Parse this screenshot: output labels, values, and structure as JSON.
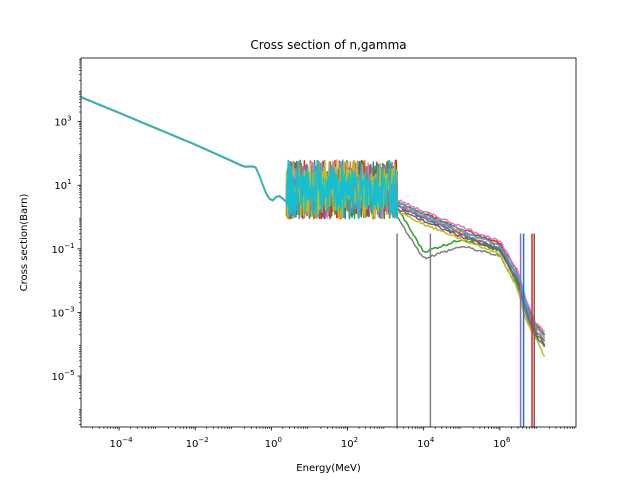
{
  "chart_data": {
    "type": "line",
    "title": "Cross section of n,gamma",
    "xlabel": "Energy(MeV)",
    "ylabel": "Cross section(Barn)",
    "xscale": "log",
    "yscale": "log",
    "xlim": [
      1e-05,
      100000000.0
    ],
    "ylim": [
      2.5e-07,
      100000.0
    ],
    "grid": false,
    "legend": "none",
    "x_ticks": [
      {
        "base": "10",
        "exp": "−4",
        "value": 0.0001
      },
      {
        "base": "10",
        "exp": "−2",
        "value": 0.01
      },
      {
        "base": "10",
        "exp": "0",
        "value": 1
      },
      {
        "base": "10",
        "exp": "2",
        "value": 100
      },
      {
        "base": "10",
        "exp": "4",
        "value": 10000.0
      },
      {
        "base": "10",
        "exp": "6",
        "value": 1000000.0
      }
    ],
    "y_ticks": [
      {
        "base": "10",
        "exp": "−5",
        "value": 1e-05
      },
      {
        "base": "10",
        "exp": "−3",
        "value": 0.001
      },
      {
        "base": "10",
        "exp": "−1",
        "value": 0.1
      },
      {
        "base": "10",
        "exp": "1",
        "value": 10
      },
      {
        "base": "10",
        "exp": "3",
        "value": 1000
      }
    ],
    "thermal_region": {
      "x": [
        1e-05,
        0.0001,
        0.001,
        0.01,
        0.1,
        0.2,
        0.3,
        0.4,
        0.5,
        0.7,
        1.0,
        1.5,
        2.5
      ],
      "y": [
        5900,
        1900,
        600,
        190,
        55,
        38,
        40,
        36,
        18,
        6,
        3,
        5,
        3
      ]
    },
    "resonance_region": {
      "x_range": [
        2.5,
        2000
      ],
      "y_range": [
        0.7,
        50
      ]
    },
    "fast_region_x": [
      2000,
      10000.0,
      100000.0,
      1000000.0,
      3000000.0,
      5000000.0,
      8000000.0,
      15000000.0
    ],
    "series_colors": [
      "#1f77b4",
      "#ff7f0e",
      "#2ca02c",
      "#d62728",
      "#9467bd",
      "#8c564b",
      "#e377c2",
      "#7f7f7f",
      "#bcbd22",
      "#17becf"
    ],
    "series": [
      {
        "y": [
          2.2,
          0.9,
          0.28,
          0.1,
          0.01,
          0.0012,
          0.0003,
          0.00012
        ]
      },
      {
        "y": [
          2.6,
          1.1,
          0.35,
          0.13,
          0.014,
          0.0016,
          0.0004,
          0.00016
        ]
      },
      {
        "y": [
          2.0,
          0.08,
          0.2,
          0.085,
          0.008,
          0.001,
          0.00025,
          0.0001
        ]
      },
      {
        "y": [
          3.0,
          1.3,
          0.42,
          0.15,
          0.018,
          0.002,
          0.0005,
          0.0002
        ]
      },
      {
        "y": [
          2.4,
          1.0,
          0.3,
          0.11,
          0.012,
          0.0013,
          0.00032,
          0.00013
        ]
      },
      {
        "y": [
          1.8,
          0.75,
          0.24,
          0.09,
          0.009,
          0.0009,
          0.0002,
          9e-05
        ]
      },
      {
        "y": [
          3.5,
          1.5,
          0.5,
          0.17,
          0.02,
          0.0025,
          0.00055,
          0.00025
        ]
      },
      {
        "y": [
          1.0,
          0.05,
          0.12,
          0.06,
          0.006,
          0.0008,
          0.0002,
          8e-05
        ]
      },
      {
        "y": [
          1.5,
          0.6,
          0.2,
          0.07,
          0.005,
          0.0005,
          0.0002,
          4e-05
        ]
      },
      {
        "y": [
          2.8,
          1.2,
          0.38,
          0.12,
          0.015,
          0.0018,
          0.00042,
          0.00018
        ]
      }
    ]
  }
}
